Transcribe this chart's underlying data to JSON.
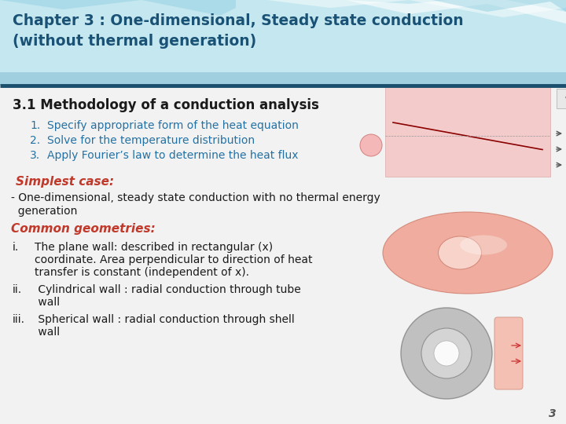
{
  "title_line1": "Chapter 3 : One-dimensional, Steady state conduction",
  "title_line2": "(without thermal generation)",
  "title_color": "#1a5276",
  "header_bg": "#b8e4ef",
  "header_underline_color": "#1a4f6e",
  "section1_heading": "3.1 Methodology of a conduction analysis",
  "section1_heading_color": "#1a1a1a",
  "list_items": [
    "Specify appropriate form of the heat equation",
    "Solve for the temperature distribution",
    "Apply Fourier’s law to determine the heat flux"
  ],
  "list_color": "#2471a3",
  "simplest_case_label": "Simplest case:",
  "simplest_case_color": "#c0392b",
  "simplest_case_text1": "- One-dimensional, steady state conduction with no thermal energy",
  "simplest_case_text2": "  generation",
  "common_geometries_label": "Common geometries:",
  "common_geometries_color": "#c0392b",
  "body_text_color": "#1a1a1a",
  "bg_color": "#f0f0f0",
  "page_number": "3",
  "title_fontsize": 13.5,
  "heading_fontsize": 12,
  "list_fontsize": 10,
  "body_fontsize": 10,
  "label_fontsize": 11
}
